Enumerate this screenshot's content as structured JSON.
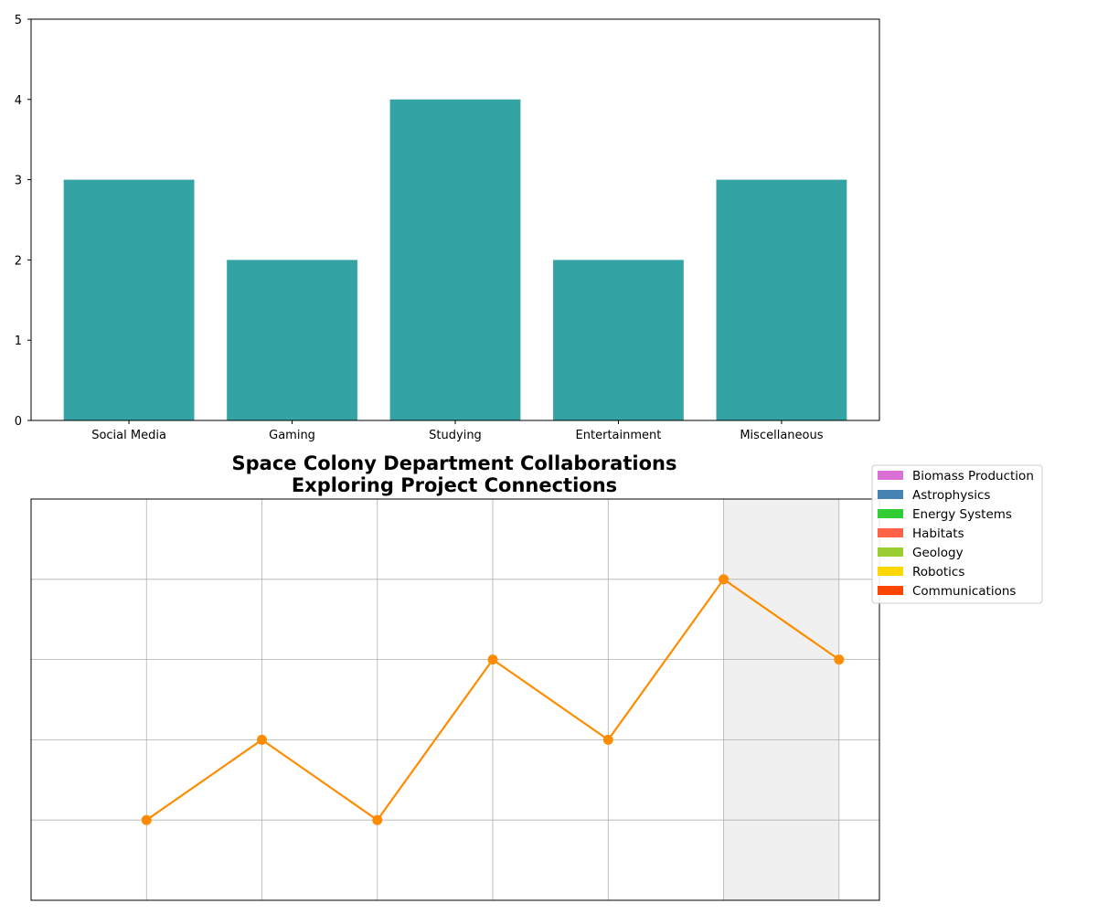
{
  "chart_data": [
    {
      "type": "bar",
      "categories": [
        "Social Media",
        "Gaming",
        "Studying",
        "Entertainment",
        "Miscellaneous"
      ],
      "values": [
        3,
        2,
        4,
        2,
        3
      ],
      "title": "",
      "xlabel": "",
      "ylabel": "",
      "ylim": [
        0,
        5
      ],
      "yticks": [
        "0",
        "1",
        "2",
        "3",
        "4",
        "5"
      ],
      "grid": false,
      "colors": {
        "bar": "#33a3a3"
      }
    },
    {
      "type": "line",
      "title_line1": "Space Colony Department Collaborations",
      "title_line2": "Exploring Project Connections",
      "x": [
        1,
        2,
        3,
        4,
        5,
        6,
        7
      ],
      "values": [
        1,
        2,
        1,
        3,
        2,
        4,
        3
      ],
      "xlim": [
        0,
        7.35
      ],
      "ylim": [
        0,
        5
      ],
      "highlight_span": [
        6,
        7
      ],
      "grid": true,
      "legend_position": "outside upper right",
      "colors": {
        "line": "#ff8c00",
        "marker": "#ff8c00",
        "highlight": "#f0f0f0",
        "grid": "#b0b0b0"
      },
      "legend": [
        {
          "label": "Biomass Production",
          "color": "#da70d6"
        },
        {
          "label": "Astrophysics",
          "color": "#4682b4"
        },
        {
          "label": "Energy Systems",
          "color": "#32cd32"
        },
        {
          "label": "Habitats",
          "color": "#ff6347"
        },
        {
          "label": "Geology",
          "color": "#9acd32"
        },
        {
          "label": "Robotics",
          "color": "#ffd700"
        },
        {
          "label": "Communications",
          "color": "#ff4500"
        }
      ]
    }
  ]
}
